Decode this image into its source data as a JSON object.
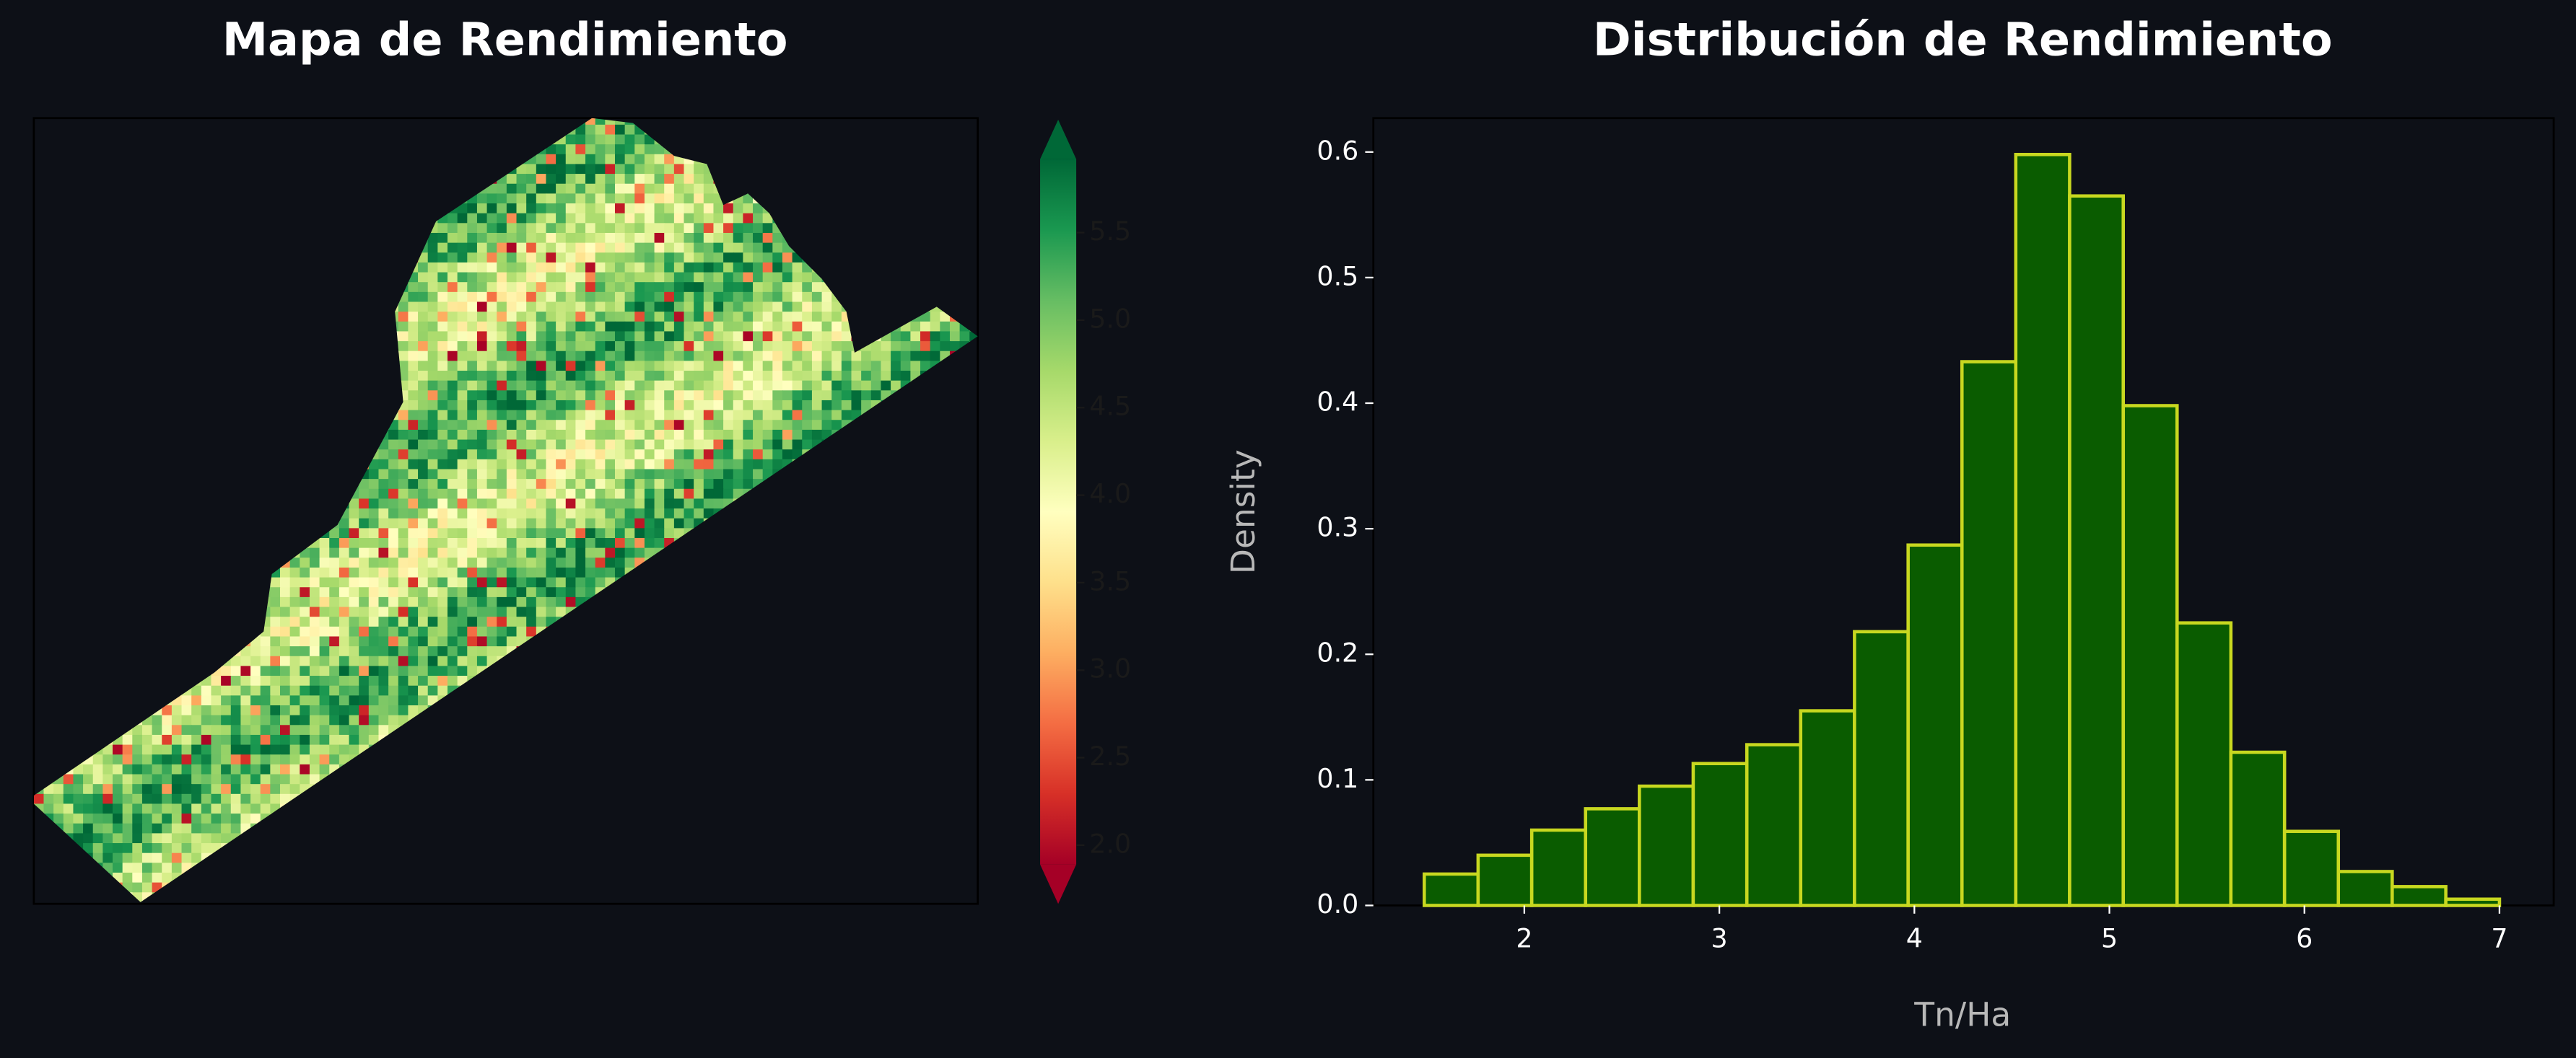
{
  "chart_data": [
    {
      "type": "heatmap",
      "title": "Mapa de Rendimiento",
      "colormap": "RdYlGn",
      "clim": [
        1.89,
        5.92
      ],
      "colorbar_ticks": [
        {
          "value": 2.0,
          "label": "2.0"
        },
        {
          "value": 2.5,
          "label": "2.5"
        },
        {
          "value": 3.0,
          "label": "3.0"
        },
        {
          "value": 3.5,
          "label": "3.5"
        },
        {
          "value": 4.0,
          "label": "4.0"
        },
        {
          "value": 4.5,
          "label": "4.5"
        },
        {
          "value": 5.0,
          "label": "5.0"
        },
        {
          "value": 5.5,
          "label": "5.5"
        }
      ]
    },
    {
      "type": "histogram",
      "title": "Distribución de Rendimiento",
      "xlabel": "Tn/Ha",
      "ylabel": "Density",
      "bins": [
        1.487,
        1.763,
        2.038,
        2.314,
        2.59,
        2.866,
        3.141,
        3.417,
        3.693,
        3.968,
        4.244,
        4.52,
        4.796,
        5.071,
        5.347,
        5.623,
        5.898,
        6.174,
        6.45,
        6.725,
        7.0
      ],
      "values": [
        0.025,
        0.04,
        0.06,
        0.077,
        0.095,
        0.113,
        0.128,
        0.155,
        0.218,
        0.287,
        0.433,
        0.598,
        0.565,
        0.398,
        0.225,
        0.122,
        0.059,
        0.027,
        0.015,
        0.005
      ],
      "color": "#0a5c00",
      "edgecolor": "#c8d820",
      "xlim": [
        1.226,
        7.278
      ],
      "xticks": [
        2,
        3,
        4,
        5,
        6,
        7
      ],
      "ylim": [
        0,
        0.627
      ],
      "yticks": [
        {
          "value": 0,
          "label": "0.0"
        },
        0.1,
        0.2,
        0.3,
        0.4,
        0.5,
        0.6
      ]
    }
  ]
}
